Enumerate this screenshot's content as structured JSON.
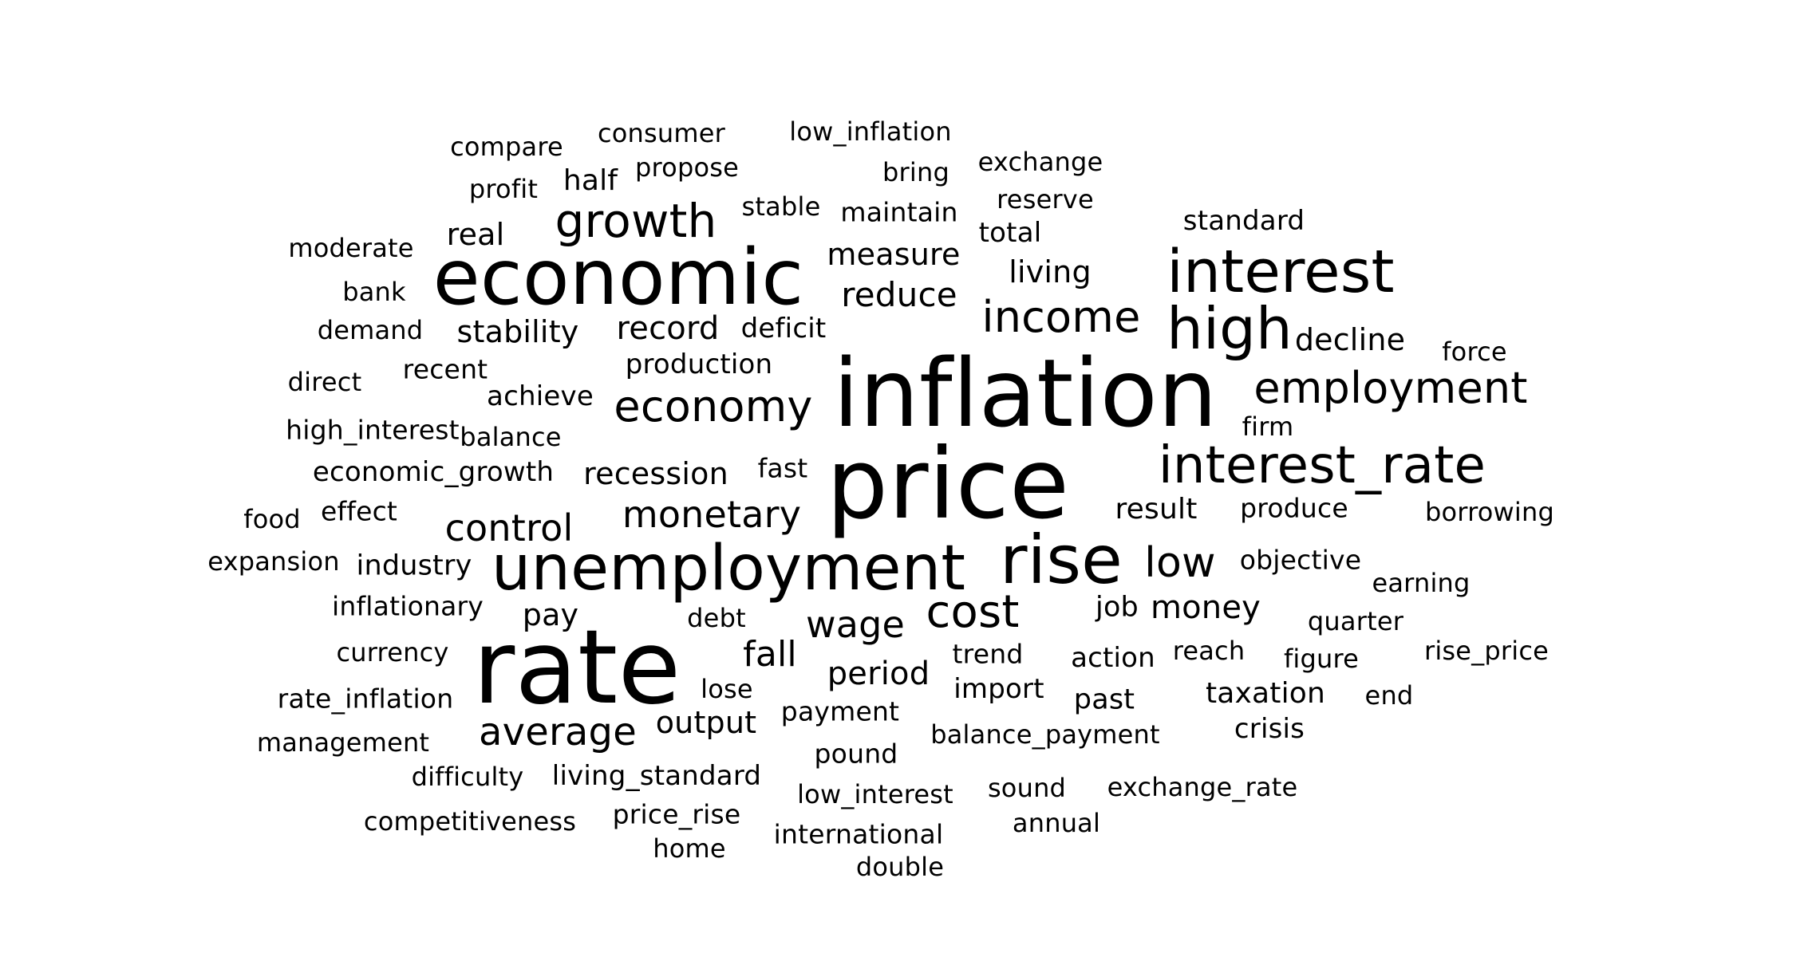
{
  "text_color": "#000000",
  "background_color": "#ffffff",
  "words": [
    "inflation",
    "price",
    "rate",
    "economic",
    "unemployment",
    "rise",
    "interest",
    "high",
    "interest_rate",
    "growth",
    "income",
    "employment",
    "economy",
    "cost",
    "monetary",
    "control",
    "average",
    "low",
    "wage",
    "money",
    "reduce",
    "measure",
    "record",
    "stability",
    "fall",
    "period",
    "recession",
    "decline",
    "result",
    "real",
    "achieve",
    "production",
    "output",
    "living_standard",
    "taxation",
    "crisis",
    "economic_growth",
    "living",
    "standard",
    "maintain",
    "stable",
    "half",
    "propose",
    "bring",
    "exchange",
    "reserve",
    "total",
    "deficit",
    "force",
    "firm",
    "produce",
    "borrowing",
    "objective",
    "earning",
    "quarter",
    "figure",
    "rise_price",
    "end",
    "action",
    "reach",
    "past",
    "import",
    "trend",
    "payment",
    "balance_payment",
    "pound",
    "low_interest",
    "sound",
    "exchange_rate",
    "annual",
    "international",
    "double",
    "home",
    "price_rise",
    "competitiveness",
    "difficulty",
    "management",
    "rate_inflation",
    "currency",
    "lose",
    "debt",
    "pay",
    "inflationary",
    "industry",
    "expansion",
    "food",
    "effect",
    "fast",
    "balance",
    "high_interest",
    "direct",
    "recent",
    "demand",
    "bank",
    "moderate",
    "profit",
    "compare",
    "consumer",
    "low_inflation",
    "job"
  ]
}
